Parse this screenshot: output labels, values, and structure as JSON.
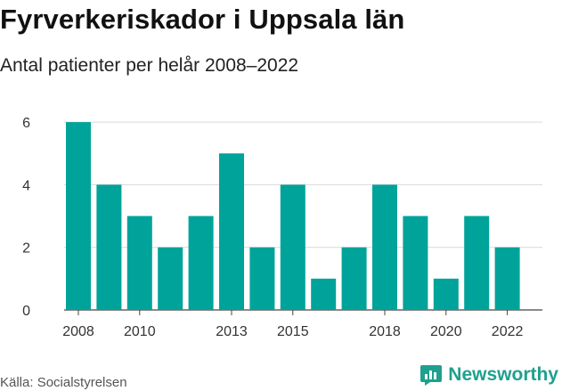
{
  "header": {
    "title": "Fyrverkeriskador i Uppsala län",
    "subtitle": "Antal patienter per helår 2008–2022"
  },
  "footer": {
    "source": "Källa: Socialstyrelsen",
    "brand": "Newsworthy",
    "brand_color": "#1fa08e"
  },
  "chart_data": {
    "type": "bar",
    "categories": [
      "2008",
      "2009",
      "2010",
      "2011",
      "2012",
      "2013",
      "2014",
      "2015",
      "2016",
      "2017",
      "2018",
      "2019",
      "2020",
      "2021",
      "2022"
    ],
    "values": [
      6,
      4,
      3,
      2,
      3,
      5,
      2,
      4,
      1,
      2,
      4,
      3,
      1,
      3,
      2
    ],
    "xticks": [
      "2008",
      "2010",
      "2013",
      "2015",
      "2018",
      "2020",
      "2022"
    ],
    "yticks": [
      0,
      2,
      4,
      6
    ],
    "ylim": [
      0,
      6.6
    ],
    "bar_color": "#00a39a",
    "grid": true,
    "xlabel": "",
    "ylabel": ""
  }
}
